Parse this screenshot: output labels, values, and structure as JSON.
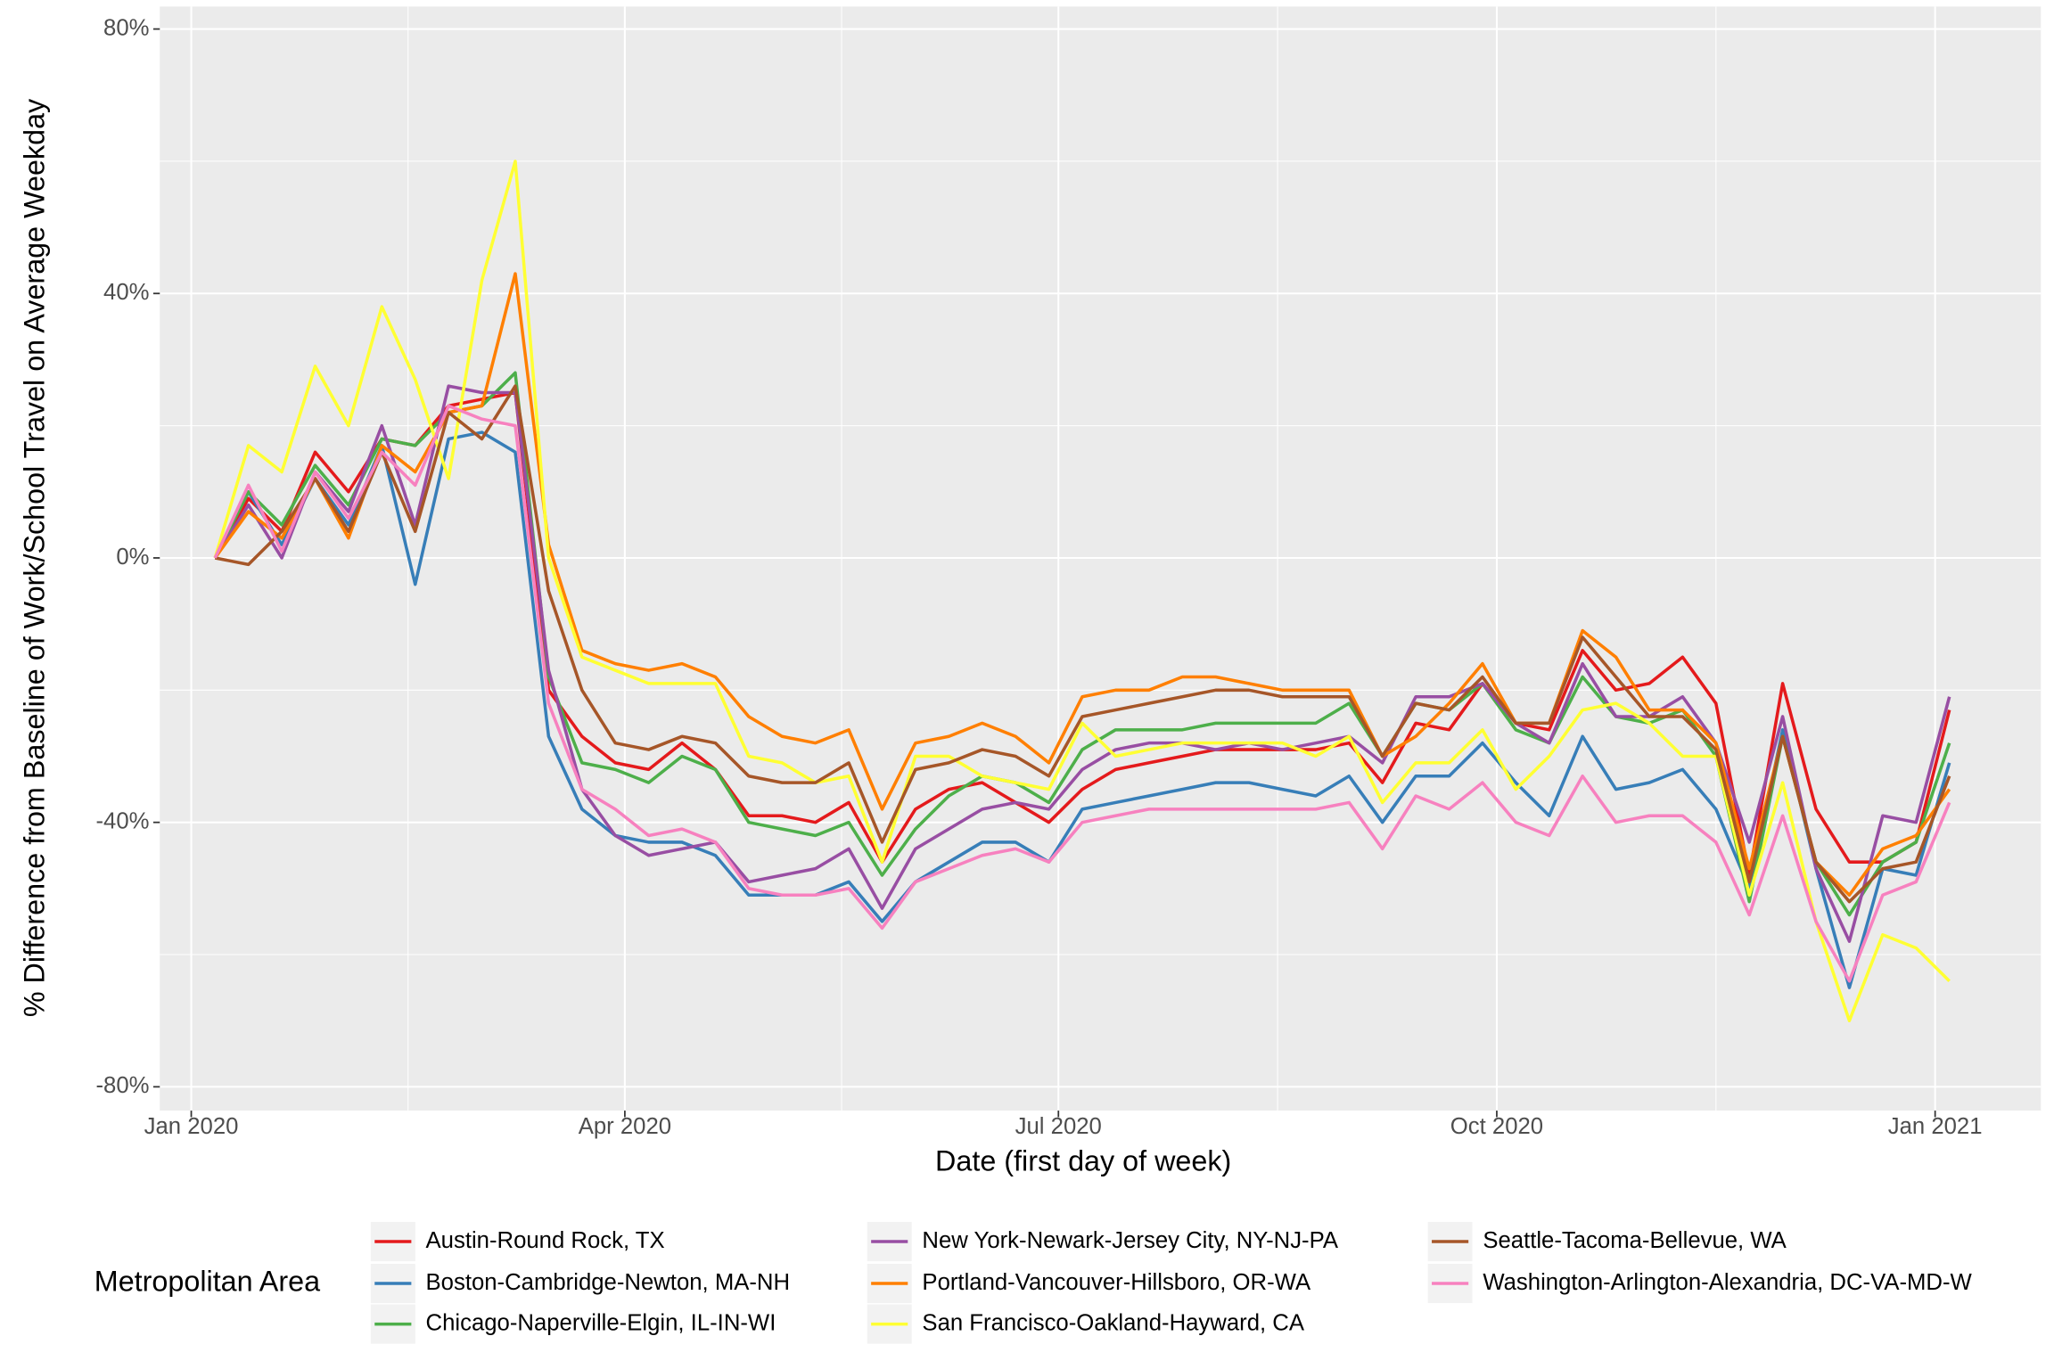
{
  "chart_data": {
    "type": "line",
    "xlabel": "Date (first day of week)",
    "ylabel": "% Difference from Baseline of Work/School Travel on Average Weekday",
    "legend_title": "Metropolitan Area",
    "legend_position": "bottom",
    "grid": true,
    "x": [
      5,
      12,
      19,
      26,
      33,
      40,
      47,
      54,
      61,
      68,
      75,
      82,
      89,
      96,
      103,
      110,
      117,
      124,
      131,
      138,
      145,
      152,
      159,
      166,
      173,
      180,
      187,
      194,
      201,
      208,
      215,
      222,
      229,
      236,
      243,
      250,
      257,
      264,
      271,
      278,
      285,
      292,
      299,
      306,
      313,
      320,
      327,
      334,
      341,
      348,
      355,
      362,
      369
    ],
    "xlim": [
      -6.6,
      388.2
    ],
    "xticks": [
      {
        "value": 0,
        "label": "Jan 2020"
      },
      {
        "value": 91,
        "label": "Apr 2020"
      },
      {
        "value": 182,
        "label": "Jul 2020"
      },
      {
        "value": 274,
        "label": "Oct 2020"
      },
      {
        "value": 366,
        "label": "Jan 2021"
      }
    ],
    "xminor": [
      45.5,
      136.5,
      228,
      320
    ],
    "ylim": [
      -83.6,
      83.4
    ],
    "yticks": [
      {
        "value": -80,
        "label": "-80%"
      },
      {
        "value": -40,
        "label": "-40%"
      },
      {
        "value": 0,
        "label": "0%"
      },
      {
        "value": 40,
        "label": "40%"
      },
      {
        "value": 80,
        "label": "80%"
      }
    ],
    "yminor": [
      -60,
      -20,
      20,
      60
    ],
    "series": [
      {
        "name": "Austin-Round Rock, TX",
        "color": "#e41a1c",
        "values": [
          0,
          9,
          4,
          16,
          10,
          18,
          17,
          23,
          24,
          25,
          -20,
          -27,
          -31,
          -32,
          -28,
          -32,
          -39,
          -39,
          -40,
          -37,
          -46,
          -38,
          -35,
          -34,
          -37,
          -40,
          -35,
          -32,
          -31,
          -30,
          -29,
          -29,
          -29,
          -29,
          -28,
          -34,
          -25,
          -26,
          -19,
          -25,
          -26,
          -14,
          -20,
          -19,
          -15,
          -22,
          -48,
          -19,
          -38,
          -46,
          -46,
          -43,
          -23
        ]
      },
      {
        "name": "Boston-Cambridge-Newton, MA-NH",
        "color": "#377eb8",
        "values": [
          0,
          10,
          2,
          12,
          5,
          17,
          -4,
          18,
          19,
          16,
          -27,
          -38,
          -42,
          -43,
          -43,
          -45,
          -51,
          -51,
          -51,
          -49,
          -55,
          -49,
          -46,
          -43,
          -43,
          -46,
          -38,
          -37,
          -36,
          -35,
          -34,
          -34,
          -35,
          -36,
          -33,
          -40,
          -33,
          -33,
          -28,
          -34,
          -39,
          -27,
          -35,
          -34,
          -32,
          -38,
          -50,
          -26,
          -47,
          -65,
          -47,
          -48,
          -31
        ]
      },
      {
        "name": "Chicago-Naperville-Elgin, IL-IN-WI",
        "color": "#4daf4a",
        "values": [
          0,
          10,
          5,
          14,
          8,
          18,
          17,
          22,
          23,
          28,
          -18,
          -31,
          -32,
          -34,
          -30,
          -32,
          -40,
          -41,
          -42,
          -40,
          -48,
          -41,
          -36,
          -33,
          -34,
          -37,
          -29,
          -26,
          -26,
          -26,
          -25,
          -25,
          -25,
          -25,
          -22,
          -30,
          -22,
          -23,
          -19,
          -26,
          -28,
          -18,
          -24,
          -25,
          -23,
          -30,
          -52,
          -27,
          -46,
          -54,
          -46,
          -43,
          -28
        ]
      },
      {
        "name": "New York-Newark-Jersey City, NY-NJ-PA",
        "color": "#984ea3",
        "values": [
          0,
          8,
          0,
          13,
          7,
          20,
          5,
          26,
          25,
          25,
          -17,
          -35,
          -42,
          -45,
          -44,
          -43,
          -49,
          -48,
          -47,
          -44,
          -53,
          -44,
          -41,
          -38,
          -37,
          -38,
          -32,
          -29,
          -28,
          -28,
          -29,
          -28,
          -29,
          -28,
          -27,
          -31,
          -21,
          -21,
          -19,
          -25,
          -28,
          -16,
          -24,
          -24,
          -21,
          -28,
          -43,
          -24,
          -47,
          -58,
          -39,
          -40,
          -21
        ]
      },
      {
        "name": "Portland-Vancouver-Hillsboro, OR-WA",
        "color": "#ff7f00",
        "values": [
          0,
          7,
          3,
          12,
          3,
          17,
          13,
          22,
          23,
          43,
          2,
          -14,
          -16,
          -17,
          -16,
          -18,
          -24,
          -27,
          -28,
          -26,
          -38,
          -28,
          -27,
          -25,
          -27,
          -31,
          -21,
          -20,
          -20,
          -18,
          -18,
          -19,
          -20,
          -20,
          -20,
          -30,
          -27,
          -22,
          -16,
          -25,
          -25,
          -11,
          -15,
          -23,
          -23,
          -28,
          -47,
          -27,
          -46,
          -51,
          -44,
          -42,
          -35
        ]
      },
      {
        "name": "San Francisco-Oakland-Hayward, CA",
        "color": "#ffff33",
        "values": [
          0,
          17,
          13,
          29,
          20,
          38,
          27,
          12,
          42,
          60,
          0,
          -15,
          -17,
          -19,
          -19,
          -19,
          -30,
          -31,
          -34,
          -33,
          -46,
          -30,
          -30,
          -33,
          -34,
          -35,
          -25,
          -30,
          -29,
          -28,
          -28,
          -28,
          -28,
          -30,
          -27,
          -37,
          -31,
          -31,
          -26,
          -35,
          -30,
          -23,
          -22,
          -25,
          -30,
          -30,
          -51,
          -34,
          -55,
          -70,
          -57,
          -59,
          -64
        ]
      },
      {
        "name": "Seattle-Tacoma-Bellevue, WA",
        "color": "#a65628",
        "values": [
          0,
          -1,
          4,
          12,
          4,
          16,
          4,
          22,
          18,
          26,
          -5,
          -20,
          -28,
          -29,
          -27,
          -28,
          -33,
          -34,
          -34,
          -31,
          -43,
          -32,
          -31,
          -29,
          -30,
          -33,
          -24,
          -23,
          -22,
          -21,
          -20,
          -20,
          -21,
          -21,
          -21,
          -30,
          -22,
          -23,
          -18,
          -25,
          -25,
          -12,
          -18,
          -24,
          -24,
          -29,
          -49,
          -27,
          -46,
          -52,
          -47,
          -46,
          -33
        ]
      },
      {
        "name": "Washington-Arlington-Alexandria, DC-VA-MD-W",
        "color": "#f781bf",
        "values": [
          0,
          11,
          1,
          13,
          6,
          16,
          11,
          23,
          21,
          20,
          -22,
          -35,
          -38,
          -42,
          -41,
          -43,
          -50,
          -51,
          -51,
          -50,
          -56,
          -49,
          -47,
          -45,
          -44,
          -46,
          -40,
          -39,
          -38,
          -38,
          -38,
          -38,
          -38,
          -38,
          -37,
          -44,
          -36,
          -38,
          -34,
          -40,
          -42,
          -33,
          -40,
          -39,
          -39,
          -43,
          -54,
          -39,
          -55,
          -64,
          -51,
          -49,
          -37
        ]
      }
    ]
  }
}
